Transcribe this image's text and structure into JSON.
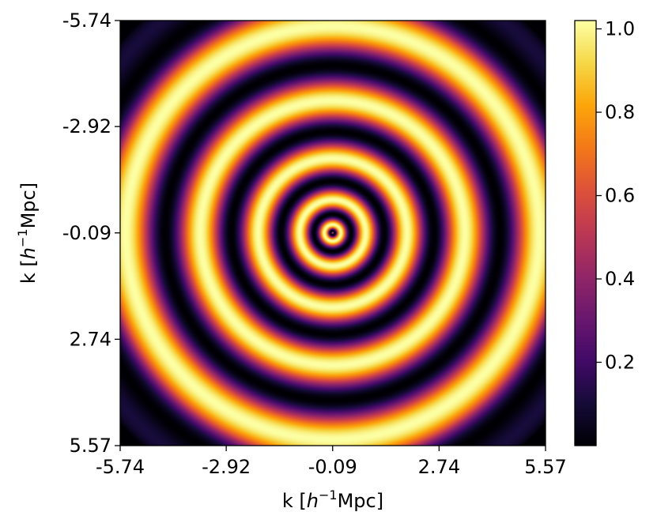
{
  "chart_data": {
    "type": "heatmap",
    "title": "",
    "xlabel": {
      "pre": "k [",
      "var": "h",
      "sup": "−1",
      "post": "Mpc]"
    },
    "ylabel": {
      "pre": "k [",
      "var": "h",
      "sup": "−1",
      "post": "Mpc]"
    },
    "xlim": [
      -5.74,
      5.57
    ],
    "ylim": [
      -5.74,
      5.57
    ],
    "y_inverted": true,
    "xticks": [
      -5.74,
      -2.92,
      -0.09,
      2.74,
      5.57
    ],
    "xtick_labels": [
      "-5.74",
      "-2.92",
      "-0.09",
      "2.74",
      "5.57"
    ],
    "yticks": [
      -5.74,
      -2.92,
      -0.09,
      2.74,
      5.57
    ],
    "ytick_labels": [
      "-5.74",
      "-2.92",
      "-0.09",
      "2.74",
      "5.57"
    ],
    "colormap": "inferno",
    "colorbar": {
      "range": [
        0.0,
        1.02
      ],
      "ticks": [
        0.2,
        0.4,
        0.6,
        0.8,
        1.0
      ],
      "tick_labels": [
        "0.2",
        "0.4",
        "0.6",
        "0.8",
        "1.0"
      ]
    },
    "pattern": {
      "description": "concentric rings centred near origin",
      "center": [
        -0.09,
        -0.09
      ],
      "intensity": "0.5*(1+cos(2*pi*sqrt(r/0.22)))"
    },
    "grid": false,
    "legend": "none"
  }
}
